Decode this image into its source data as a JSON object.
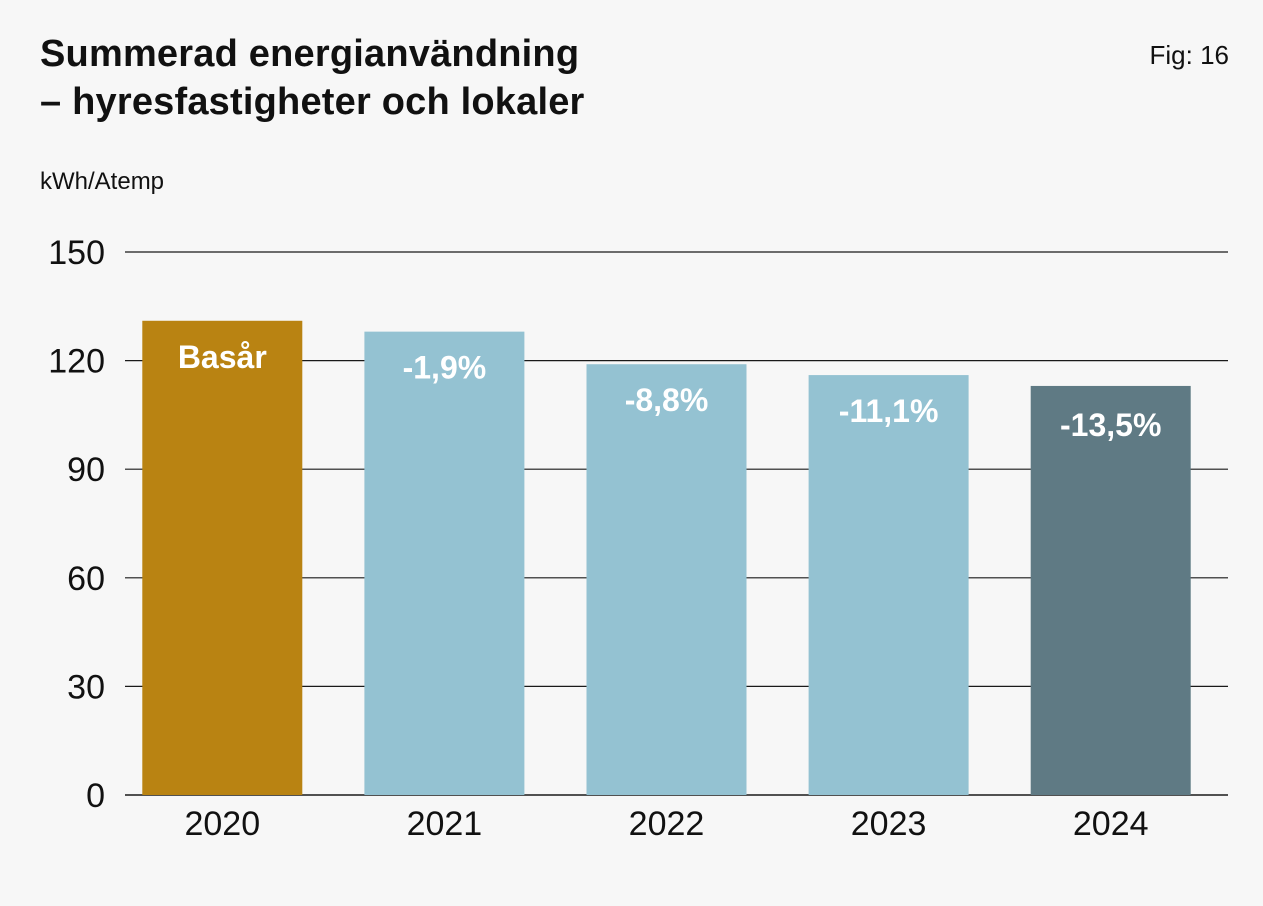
{
  "title_line1": "Summerad energianvändning",
  "title_line2": "– hyresfastigheter och lokaler",
  "figure_label": "Fig: 16",
  "chart_data": {
    "type": "bar",
    "title": "Summerad energianvändning – hyresfastigheter och lokaler",
    "ylabel": "kWh/Atemp",
    "xlabel": "",
    "categories": [
      "2020",
      "2021",
      "2022",
      "2023",
      "2024"
    ],
    "values": [
      131,
      128,
      119,
      116,
      113
    ],
    "bar_labels": [
      "Basår",
      "-1,9%",
      "-8,8%",
      "-11,1%",
      "-13,5%"
    ],
    "bar_colors": [
      "#b98312",
      "#94c2d2",
      "#94c2d2",
      "#94c2d2",
      "#5f7a84"
    ],
    "ylim": [
      0,
      150
    ],
    "yticks": [
      0,
      30,
      60,
      90,
      120,
      150
    ],
    "grid": true,
    "legend": "none"
  }
}
